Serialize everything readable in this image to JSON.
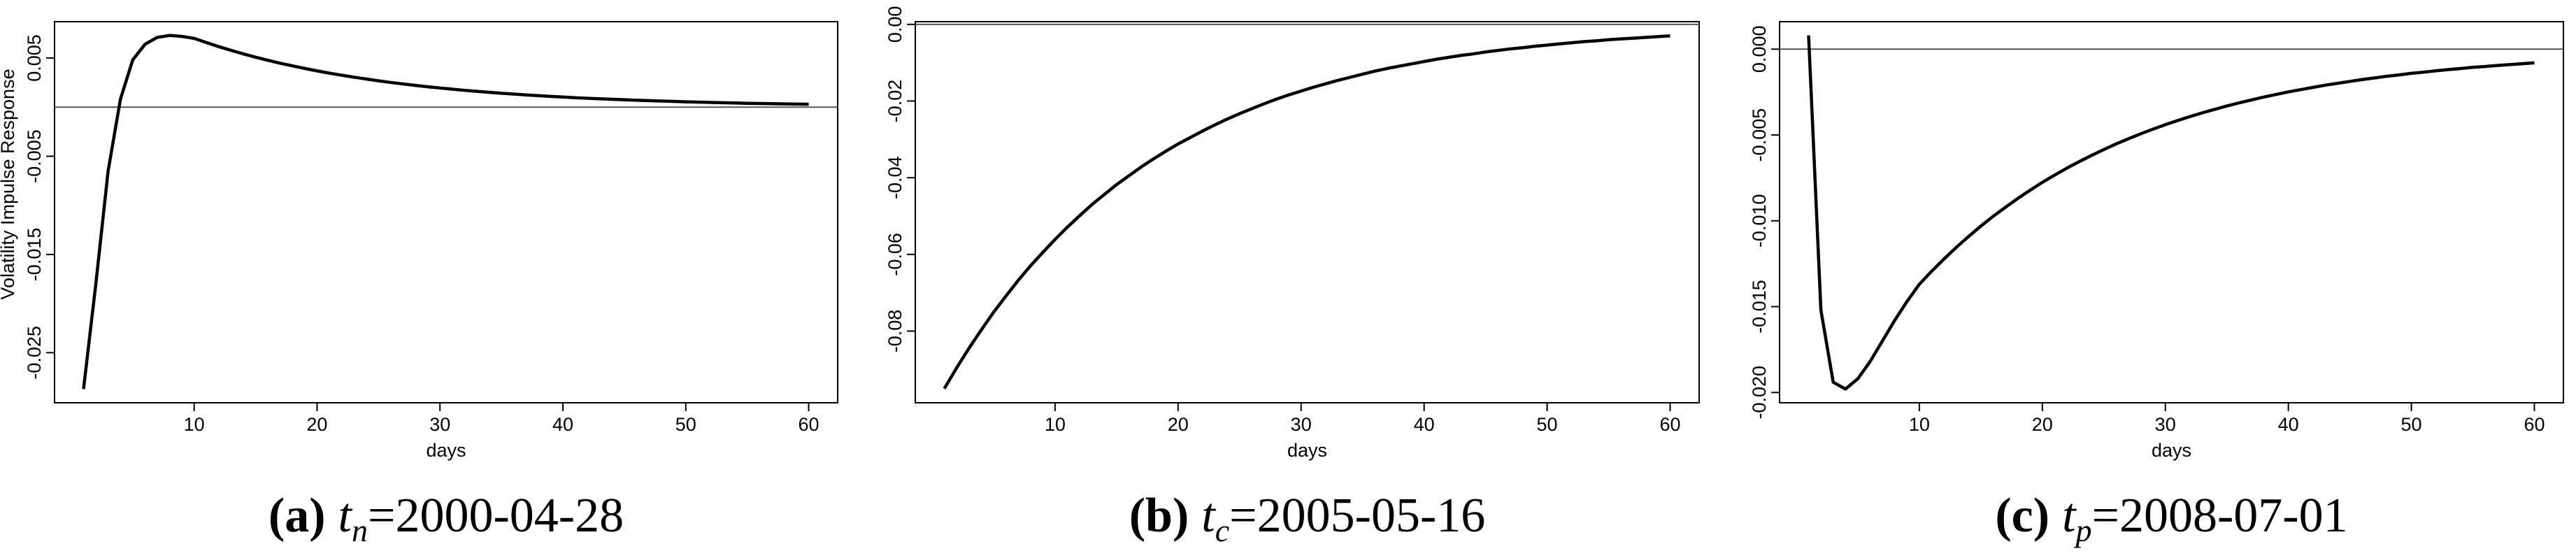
{
  "chart_data": [
    {
      "type": "line",
      "ylabel": "Volatility Impulse Response",
      "xlabel": "days",
      "caption": {
        "label": "(a)",
        "symbol": "t",
        "subscript": "n",
        "text": "=2000-04-28"
      },
      "x": [
        1,
        2,
        3,
        4,
        5,
        6,
        7,
        8,
        9,
        10,
        11,
        12,
        13,
        14,
        15,
        16,
        17,
        18,
        19,
        20,
        21,
        22,
        23,
        24,
        25,
        26,
        27,
        28,
        29,
        30,
        31,
        32,
        33,
        34,
        35,
        36,
        37,
        38,
        39,
        40,
        41,
        42,
        43,
        44,
        45,
        46,
        47,
        48,
        49,
        50,
        51,
        52,
        53,
        54,
        55,
        56,
        57,
        58,
        59,
        60
      ],
      "series": [
        {
          "color": "#000000",
          "values": [
            -0.0287,
            -0.018,
            -0.0065,
            0.0008,
            0.0048,
            0.0064,
            0.0071,
            0.0073,
            0.0072,
            0.007,
            0.00657,
            0.00616,
            0.00578,
            0.00542,
            0.00508,
            0.00477,
            0.00447,
            0.0042,
            0.00394,
            0.00369,
            0.00346,
            0.00325,
            0.00305,
            0.00286,
            0.00268,
            0.00251,
            0.00236,
            0.00221,
            0.00207,
            0.00195,
            0.00183,
            0.00171,
            0.00161,
            0.00151,
            0.00141,
            0.00133,
            0.00124,
            0.00117,
            0.00109,
            0.00103,
            0.00096,
            0.0009,
            0.00085,
            0.0008,
            0.00075,
            0.0007,
            0.00066,
            0.00062,
            0.00058,
            0.00054,
            0.00051,
            0.00048,
            0.00045,
            0.00042,
            0.00039,
            0.00037,
            0.00035,
            0.00033,
            0.00031,
            0.00029
          ]
        }
      ],
      "reference_line": 0,
      "xlim": [
        -1.36,
        62.36
      ],
      "xticks": [
        10,
        20,
        30,
        40,
        50,
        60
      ],
      "ylim": [
        -0.0301,
        0.0087
      ],
      "yticks": [
        0.005,
        -0.005,
        -0.015,
        -0.025
      ]
    },
    {
      "type": "line",
      "xlabel": "days",
      "caption": {
        "label": "(b)",
        "symbol": "t",
        "subscript": "c",
        "text": "=2005-05-16"
      },
      "x": [
        1,
        2,
        3,
        4,
        5,
        6,
        7,
        8,
        9,
        10,
        11,
        12,
        13,
        14,
        15,
        16,
        17,
        18,
        19,
        20,
        21,
        22,
        23,
        24,
        25,
        26,
        27,
        28,
        29,
        30,
        31,
        32,
        33,
        34,
        35,
        36,
        37,
        38,
        39,
        40,
        41,
        42,
        43,
        44,
        45,
        46,
        47,
        48,
        49,
        50,
        51,
        52,
        53,
        54,
        55,
        56,
        57,
        58,
        59,
        60
      ],
      "series": [
        {
          "color": "#000000",
          "values": [
            -0.095,
            -0.0896,
            -0.0845,
            -0.0797,
            -0.0751,
            -0.0709,
            -0.0668,
            -0.063,
            -0.0595,
            -0.0561,
            -0.0529,
            -0.0499,
            -0.047,
            -0.0444,
            -0.0418,
            -0.0395,
            -0.0372,
            -0.0351,
            -0.0331,
            -0.0312,
            -0.0295,
            -0.0278,
            -0.0262,
            -0.0247,
            -0.0233,
            -0.022,
            -0.0207,
            -0.0195,
            -0.0184,
            -0.0174,
            -0.0164,
            -0.0155,
            -0.0146,
            -0.0138,
            -0.013,
            -0.0122,
            -0.0115,
            -0.0109,
            -0.0103,
            -0.0097,
            -0.0091,
            -0.0086,
            -0.0081,
            -0.0077,
            -0.0072,
            -0.0068,
            -0.0064,
            -0.0061,
            -0.0057,
            -0.0054,
            -0.0051,
            -0.0048,
            -0.0045,
            -0.0043,
            -0.004,
            -0.0038,
            -0.0036,
            -0.0034,
            -0.0032,
            -0.003
          ]
        }
      ],
      "reference_line": 0,
      "xlim": [
        -1.36,
        62.36
      ],
      "xticks": [
        10,
        20,
        30,
        40,
        50,
        60
      ],
      "ylim": [
        -0.0987,
        0.0007
      ],
      "yticks": [
        {
          "value": 0,
          "label": "0.00"
        },
        -0.02,
        -0.04,
        -0.06,
        -0.08
      ]
    },
    {
      "type": "line",
      "xlabel": "days",
      "caption": {
        "label": "(c)",
        "symbol": "t",
        "subscript": "p",
        "text": "=2008-07-01"
      },
      "x": [
        1,
        2,
        3,
        4,
        5,
        6,
        7,
        8,
        9,
        10,
        11,
        12,
        13,
        14,
        15,
        16,
        17,
        18,
        19,
        20,
        21,
        22,
        23,
        24,
        25,
        26,
        27,
        28,
        29,
        30,
        31,
        32,
        33,
        34,
        35,
        36,
        37,
        38,
        39,
        40,
        41,
        42,
        43,
        44,
        45,
        46,
        47,
        48,
        49,
        50,
        51,
        52,
        53,
        54,
        55,
        56,
        57,
        58,
        59,
        60
      ],
      "series": [
        {
          "color": "#000000",
          "values": [
            0.0008,
            -0.0152,
            -0.0194,
            -0.0198,
            -0.0192,
            -0.0182,
            -0.017,
            -0.0158,
            -0.0147,
            -0.0137,
            -0.01294,
            -0.01223,
            -0.01155,
            -0.01092,
            -0.01031,
            -0.00974,
            -0.00921,
            -0.0087,
            -0.00822,
            -0.00776,
            -0.00734,
            -0.00693,
            -0.00655,
            -0.00619,
            -0.00585,
            -0.00552,
            -0.00522,
            -0.00493,
            -0.00466,
            -0.0044,
            -0.00416,
            -0.00393,
            -0.00371,
            -0.00351,
            -0.00331,
            -0.00313,
            -0.00296,
            -0.00279,
            -0.00264,
            -0.00249,
            -0.00236,
            -0.00223,
            -0.0021,
            -0.00199,
            -0.00188,
            -0.00177,
            -0.00168,
            -0.00158,
            -0.0015,
            -0.00141,
            -0.00134,
            -0.00126,
            -0.00119,
            -0.00113,
            -0.00106,
            -0.00101,
            -0.00095,
            -0.0009,
            -0.00085,
            -0.0008
          ]
        }
      ],
      "reference_line": 0,
      "xlim": [
        -1.36,
        62.36
      ],
      "xticks": [
        10,
        20,
        30,
        40,
        50,
        60
      ],
      "ylim": [
        -0.0206,
        0.0016
      ],
      "yticks": [
        {
          "value": 0,
          "label": "0.000"
        },
        -0.005,
        {
          "value": -0.01,
          "label": "-0.010"
        },
        -0.015,
        {
          "value": -0.02,
          "label": "-0.020"
        }
      ]
    }
  ]
}
